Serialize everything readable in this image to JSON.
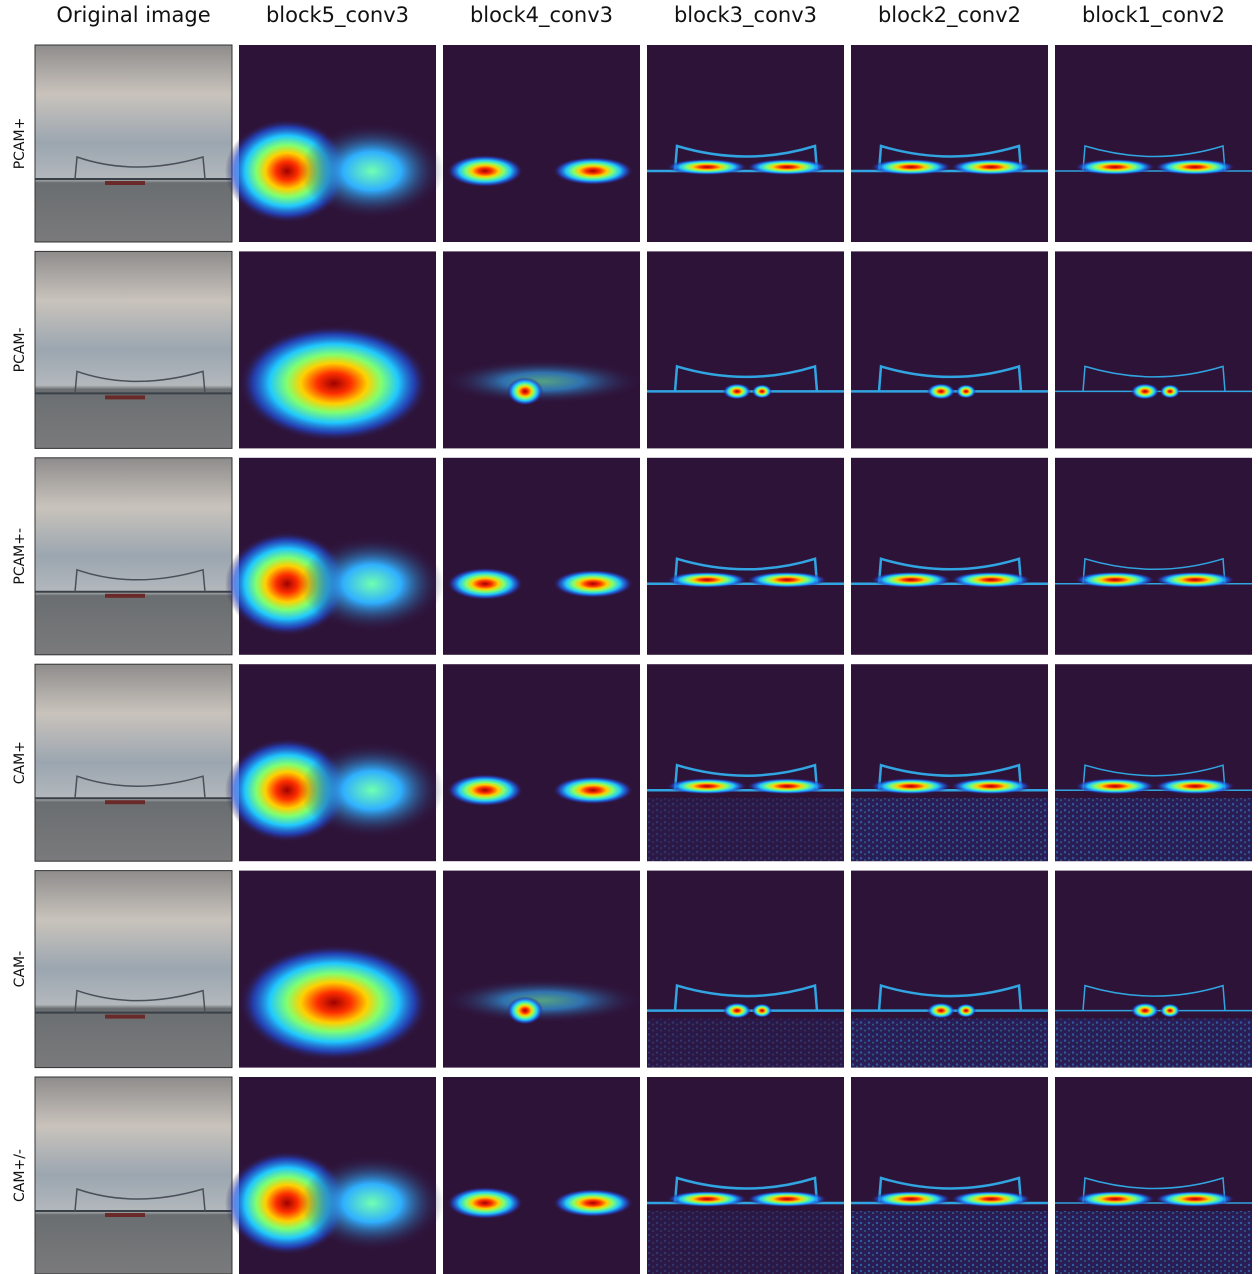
{
  "columns": [
    "Original image",
    "block5_conv3",
    "block4_conv3",
    "block3_conv3",
    "block2_conv2",
    "block1_conv2"
  ],
  "rows": [
    "PCAM+",
    "PCAM-",
    "PCAM+-",
    "CAM+",
    "CAM-",
    "CAM+/-"
  ]
}
